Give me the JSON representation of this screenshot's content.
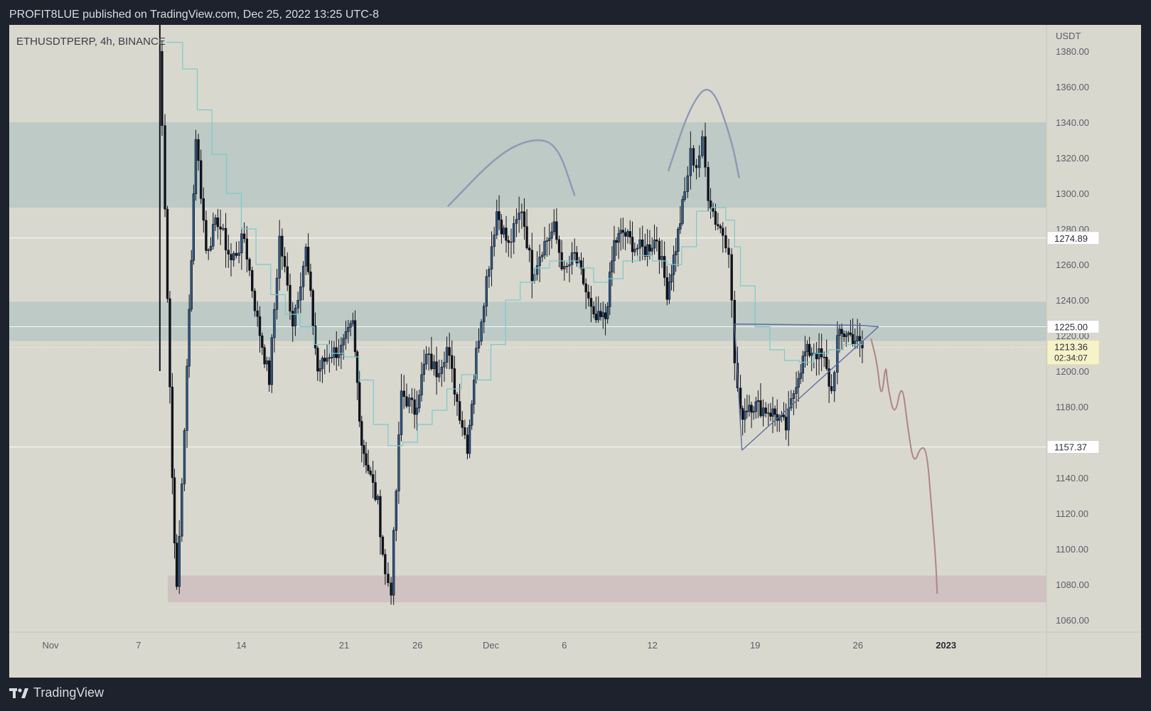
{
  "header": {
    "publish_line": "PROFIT8LUE published on TradingView.com, Dec 25, 2022 13:25 UTC-8"
  },
  "symbol_label": "ETHUSDTPERP, 4h, BINANCE",
  "footer": {
    "brand": "TradingView"
  },
  "colors": {
    "background": "#d9d8cf",
    "candle": "#10131c",
    "candle_up_body": "#2f5a86",
    "moving_average": "#7cc9cb",
    "zone_green": "#b9c9c3",
    "zone_red": "#cdbebd",
    "drawing_blue": "#5c6fa1",
    "drawing_red": "#b08583"
  },
  "chart_data": {
    "type": "candlestick",
    "timeframe": "4h",
    "exchange": "BINANCE",
    "symbol": "ETHUSDTPERP",
    "y_axis": {
      "unit": "USDT",
      "range": [
        1050,
        1388
      ],
      "ticks": [
        "1380.00",
        "1360.00",
        "1340.00",
        "1320.00",
        "1300.00",
        "1280.00",
        "1260.00",
        "1240.00",
        "1220.00",
        "1200.00",
        "1180.00",
        "1140.00",
        "1120.00",
        "1100.00",
        "1080.00",
        "1060.00"
      ],
      "tick_values": [
        1380,
        1360,
        1340,
        1320,
        1300,
        1280,
        1260,
        1240,
        1220,
        1200,
        1180,
        1140,
        1120,
        1100,
        1080,
        1060
      ]
    },
    "x_axis": {
      "ticks": [
        {
          "label": "Nov",
          "day": 1
        },
        {
          "label": "7",
          "day": 7
        },
        {
          "label": "14",
          "day": 14
        },
        {
          "label": "21",
          "day": 21
        },
        {
          "label": "26",
          "day": 26
        },
        {
          "label": "Dec",
          "day": 31
        },
        {
          "label": "6",
          "day": 36
        },
        {
          "label": "12",
          "day": 42
        },
        {
          "label": "19",
          "day": 49
        },
        {
          "label": "26",
          "day": 56
        },
        {
          "label": "2023",
          "day": 62
        }
      ]
    },
    "price_labels": [
      {
        "text": "1274.89",
        "value": 1274.89,
        "style": "white"
      },
      {
        "text": "1225.00",
        "value": 1225.0,
        "style": "white"
      },
      {
        "text": "1213.36",
        "value": 1213.36,
        "style": "yellow",
        "countdown": "02:34:07"
      },
      {
        "text": "1157.37",
        "value": 1157.37,
        "style": "white"
      }
    ],
    "horizontal_lines": [
      1274.89,
      1225.0,
      1157.37
    ],
    "zones": [
      {
        "color": "green",
        "from": 1292,
        "to": 1340
      },
      {
        "color": "green",
        "from": 1217,
        "to": 1239
      },
      {
        "color": "red",
        "from": 1070,
        "to": 1085,
        "start_day": 9
      }
    ],
    "pivots": [
      [
        8.4,
        1380
      ],
      [
        8.8,
        1295
      ],
      [
        9.3,
        1140
      ],
      [
        9.6,
        1075
      ],
      [
        10.3,
        1200
      ],
      [
        10.9,
        1333
      ],
      [
        11.6,
        1268
      ],
      [
        12.4,
        1285
      ],
      [
        13.3,
        1262
      ],
      [
        14.2,
        1275
      ],
      [
        15.1,
        1228
      ],
      [
        15.9,
        1195
      ],
      [
        16.6,
        1275
      ],
      [
        17.5,
        1228
      ],
      [
        18.4,
        1268
      ],
      [
        19.2,
        1200
      ],
      [
        20.0,
        1210
      ],
      [
        20.8,
        1212
      ],
      [
        21.6,
        1226
      ],
      [
        22.2,
        1160
      ],
      [
        22.8,
        1140
      ],
      [
        23.3,
        1125
      ],
      [
        23.8,
        1085
      ],
      [
        24.2,
        1078
      ],
      [
        24.9,
        1188
      ],
      [
        25.8,
        1178
      ],
      [
        26.6,
        1208
      ],
      [
        27.3,
        1200
      ],
      [
        28.0,
        1213
      ],
      [
        28.7,
        1183
      ],
      [
        29.4,
        1158
      ],
      [
        30.0,
        1210
      ],
      [
        30.7,
        1252
      ],
      [
        31.4,
        1290
      ],
      [
        32.2,
        1270
      ],
      [
        33.1,
        1292
      ],
      [
        33.8,
        1255
      ],
      [
        34.5,
        1270
      ],
      [
        35.3,
        1280
      ],
      [
        36.0,
        1255
      ],
      [
        36.7,
        1265
      ],
      [
        37.3,
        1250
      ],
      [
        38.0,
        1228
      ],
      [
        38.8,
        1230
      ],
      [
        39.4,
        1272
      ],
      [
        40.0,
        1278
      ],
      [
        40.8,
        1270
      ],
      [
        41.5,
        1268
      ],
      [
        42.3,
        1275
      ],
      [
        43.0,
        1245
      ],
      [
        43.6,
        1270
      ],
      [
        44.2,
        1300
      ],
      [
        44.6,
        1322
      ],
      [
        45.0,
        1316
      ],
      [
        45.4,
        1328
      ],
      [
        45.8,
        1300
      ],
      [
        46.3,
        1285
      ],
      [
        46.8,
        1278
      ],
      [
        47.2,
        1270
      ],
      [
        47.6,
        1205
      ],
      [
        48.0,
        1175
      ],
      [
        48.6,
        1182
      ],
      [
        49.2,
        1180
      ],
      [
        49.9,
        1178
      ],
      [
        50.5,
        1175
      ],
      [
        51.1,
        1168
      ],
      [
        51.8,
        1195
      ],
      [
        52.4,
        1210
      ],
      [
        53.0,
        1212
      ],
      [
        53.7,
        1205
      ],
      [
        54.2,
        1188
      ],
      [
        54.6,
        1218
      ],
      [
        55.2,
        1222
      ],
      [
        55.8,
        1218
      ],
      [
        56.3,
        1213
      ]
    ],
    "moving_average": [
      [
        8.9,
        1385
      ],
      [
        10.0,
        1370
      ],
      [
        11.0,
        1347
      ],
      [
        12.0,
        1322
      ],
      [
        13.0,
        1300
      ],
      [
        14.0,
        1280
      ],
      [
        15.0,
        1260
      ],
      [
        16.0,
        1243
      ],
      [
        17.0,
        1232
      ],
      [
        18.0,
        1225
      ],
      [
        19.0,
        1215
      ],
      [
        20.0,
        1210
      ],
      [
        21.0,
        1208
      ],
      [
        22.0,
        1195
      ],
      [
        23.0,
        1170
      ],
      [
        24.0,
        1158
      ],
      [
        25.0,
        1160
      ],
      [
        26.0,
        1170
      ],
      [
        27.0,
        1178
      ],
      [
        28.0,
        1190
      ],
      [
        29.0,
        1198
      ],
      [
        30.0,
        1195
      ],
      [
        31.0,
        1215
      ],
      [
        32.0,
        1240
      ],
      [
        33.0,
        1250
      ],
      [
        34.0,
        1258
      ],
      [
        35.0,
        1262
      ],
      [
        36.0,
        1262
      ],
      [
        37.0,
        1258
      ],
      [
        38.0,
        1250
      ],
      [
        39.0,
        1252
      ],
      [
        40.0,
        1262
      ],
      [
        41.0,
        1265
      ],
      [
        42.0,
        1262
      ],
      [
        43.0,
        1260
      ],
      [
        44.0,
        1270
      ],
      [
        45.0,
        1290
      ],
      [
        46.0,
        1292
      ],
      [
        47.0,
        1285
      ],
      [
        47.6,
        1270
      ],
      [
        48.0,
        1248
      ],
      [
        49.0,
        1225
      ],
      [
        50.0,
        1212
      ],
      [
        51.0,
        1206
      ],
      [
        52.0,
        1205
      ],
      [
        53.0,
        1210
      ],
      [
        54.0,
        1212
      ],
      [
        55.0,
        1215
      ],
      [
        56.3,
        1218
      ]
    ],
    "triangle": {
      "top": [
        [
          47.6,
          1226.5
        ],
        [
          56.0,
          1225.8
        ],
        [
          57.4,
          1225.0
        ]
      ],
      "apex": [
        57.4,
        1225.0
      ],
      "bottom_left": [
        48.1,
        1155.5
      ],
      "note": "ascending triangle drawing"
    },
    "arcs": [
      {
        "name": "left-shoulder-arc",
        "points": [
          [
            28.1,
            1293
          ],
          [
            31.5,
            1322
          ],
          [
            33.8,
            1331
          ],
          [
            35.5,
            1328
          ],
          [
            36.7,
            1299
          ]
        ]
      },
      {
        "name": "head-arc",
        "points": [
          [
            43.1,
            1313
          ],
          [
            44.6,
            1350
          ],
          [
            46.0,
            1363
          ],
          [
            47.4,
            1330
          ],
          [
            47.9,
            1309
          ]
        ]
      }
    ],
    "projection_path": {
      "points": [
        [
          56.9,
          1218
        ],
        [
          57.3,
          1205
        ],
        [
          57.6,
          1183
        ],
        [
          57.9,
          1205
        ],
        [
          58.0,
          1193
        ],
        [
          58.5,
          1173
        ],
        [
          59.0,
          1195
        ],
        [
          59.4,
          1168
        ],
        [
          59.8,
          1147
        ],
        [
          60.3,
          1158
        ],
        [
          60.7,
          1155
        ],
        [
          61.0,
          1125
        ],
        [
          61.3,
          1094
        ],
        [
          61.4,
          1075
        ]
      ],
      "note": "projected downward path"
    }
  }
}
